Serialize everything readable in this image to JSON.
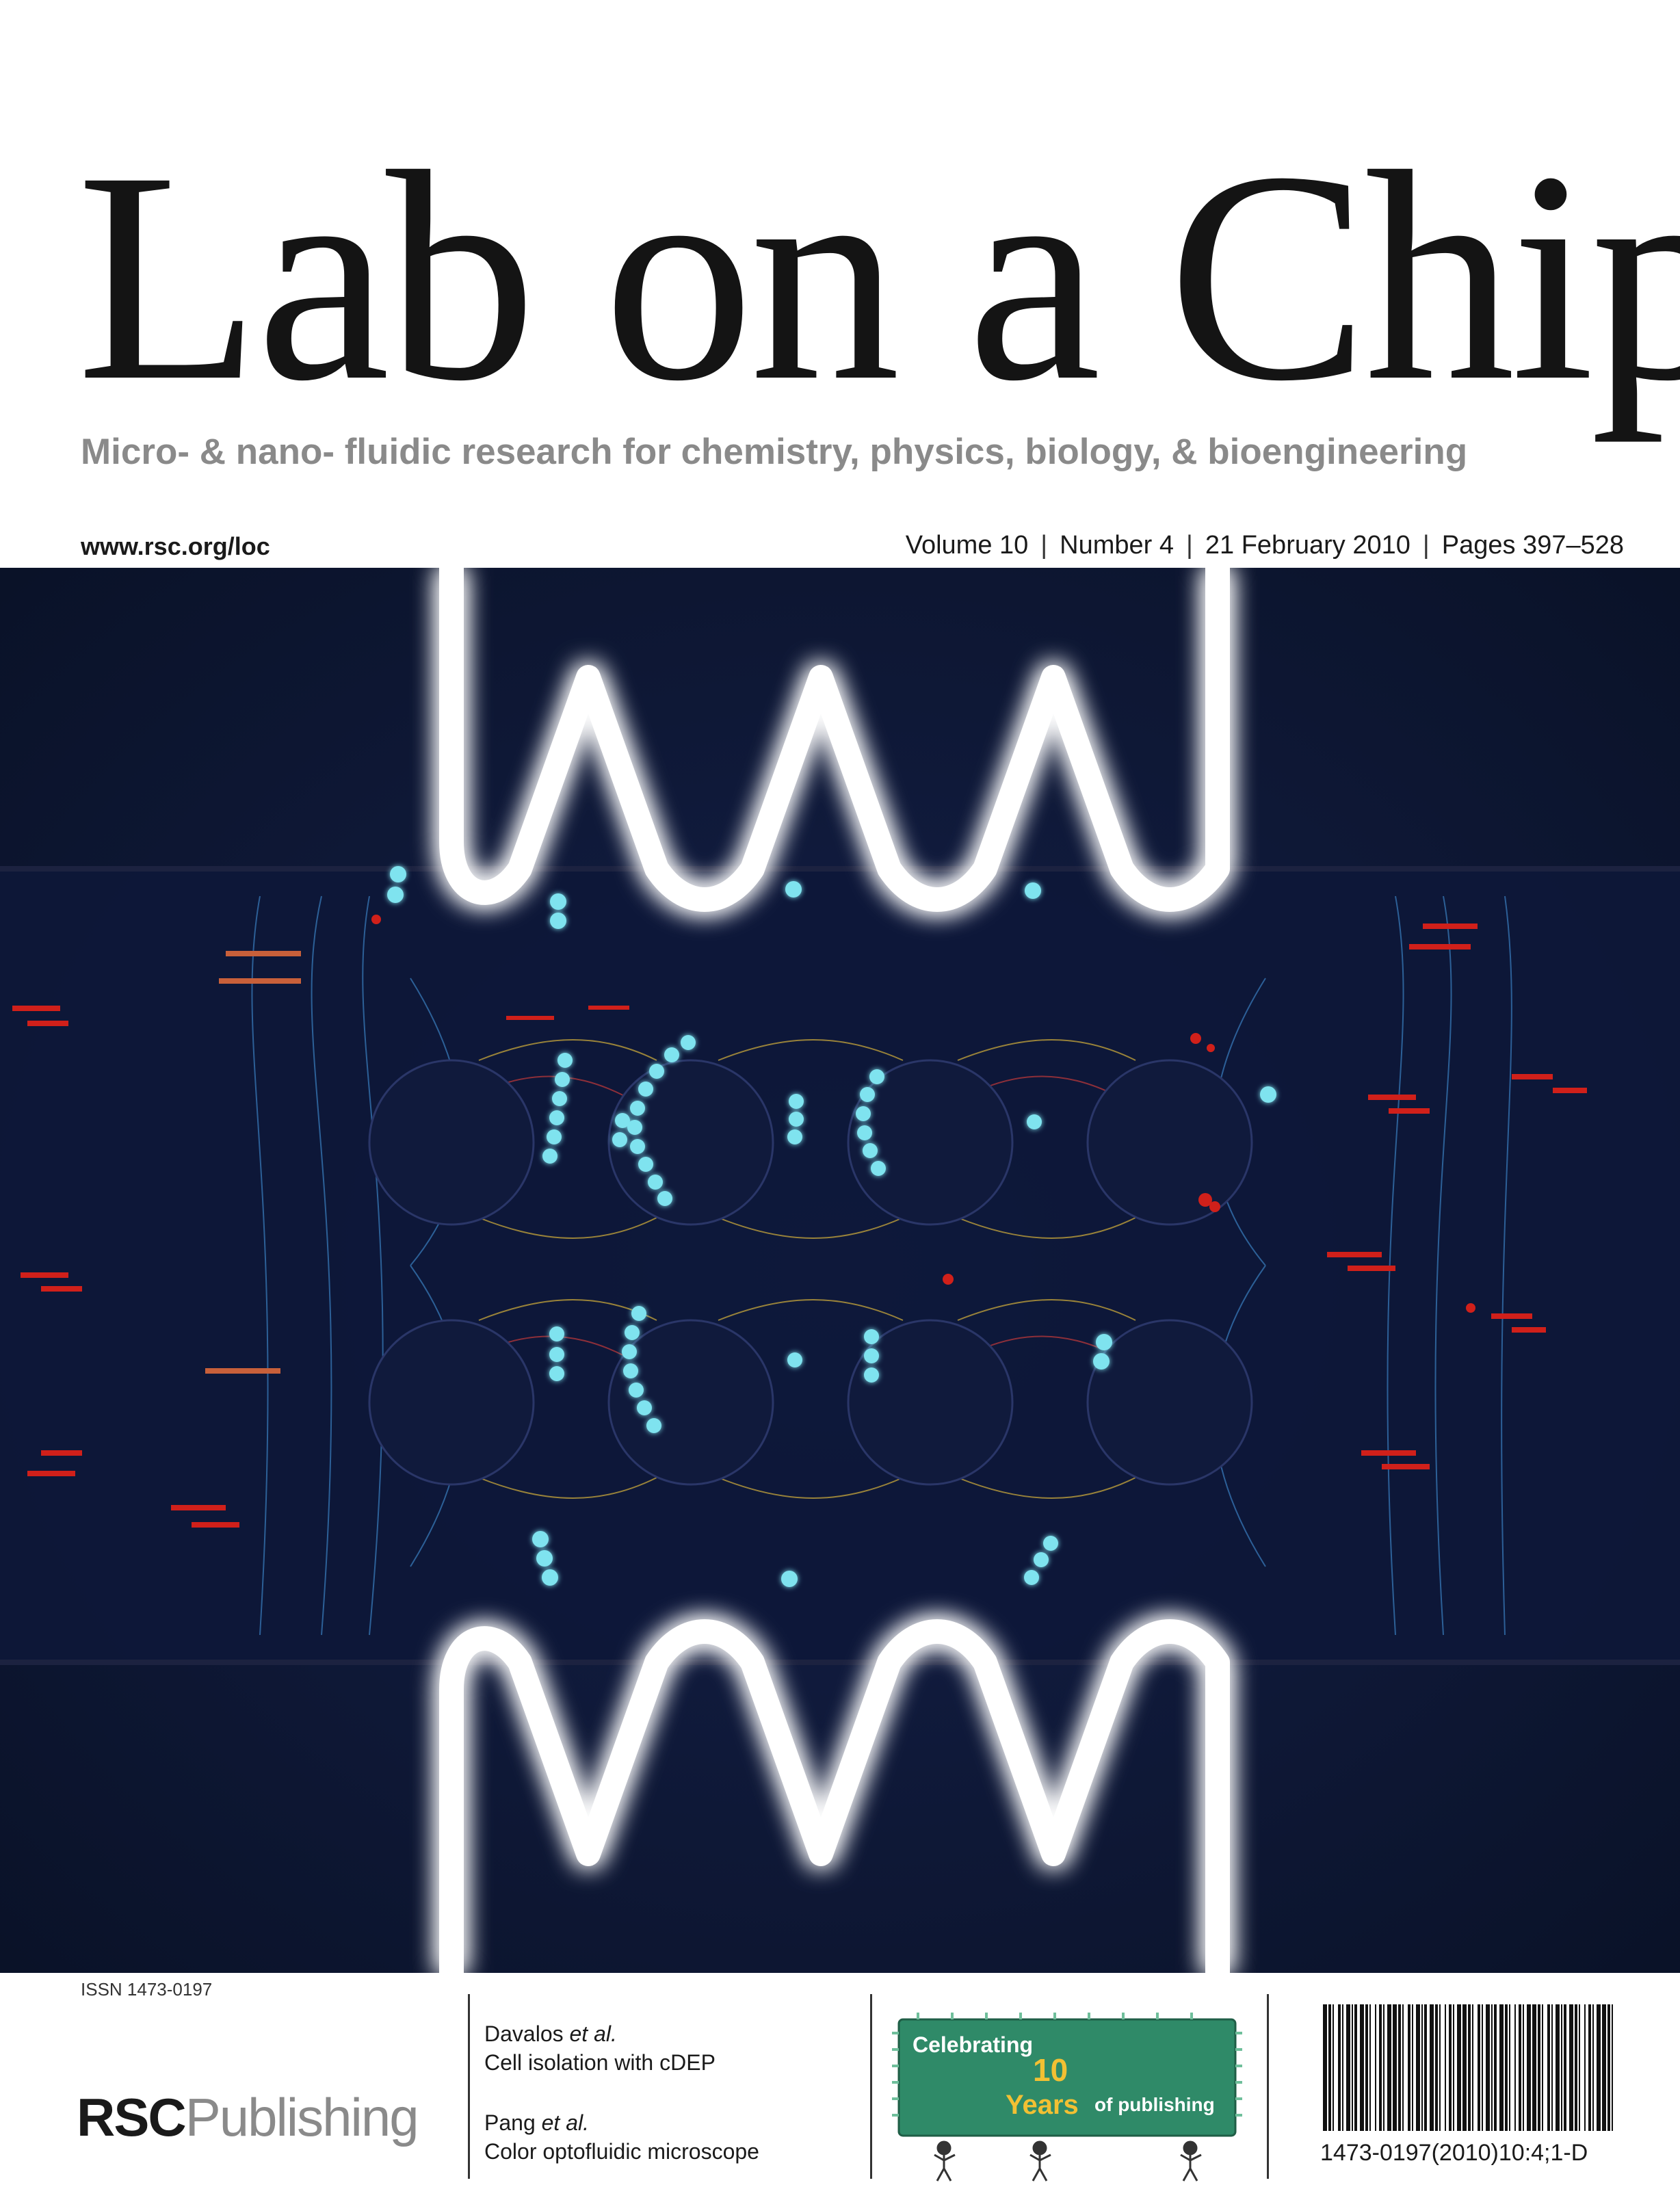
{
  "journal": {
    "title": "Lab on a Chip",
    "subtitle": "Micro- & nano- fluidic research for chemistry, physics, biology, & bioengineering",
    "url": "www.rsc.org/loc",
    "issue": {
      "volume": "Volume 10",
      "number": "Number 4",
      "date": "21 February 2010",
      "pages": "Pages 397–528",
      "separator": "|"
    }
  },
  "footer": {
    "issn": "ISSN 1473-0197",
    "publisher_bold": "RSC",
    "publisher_light": "Publishing",
    "articles": [
      {
        "author": "Davalos",
        "etal": " et al.",
        "title": "Cell isolation with cDEP"
      },
      {
        "author": "Pang",
        "etal": " et al.",
        "title": "Color optofluidic microscope"
      }
    ],
    "anniversary": {
      "line1": "Celebrating",
      "number": "10",
      "line2": "Years",
      "line3": "of publishing"
    },
    "barcode_text": "1473-0197(2010)10:4;1-D"
  },
  "colors": {
    "cover_background": "#0b1430",
    "electrode_glow": "#ffffff",
    "cell_color": "#7fe3ef",
    "subtitle_gray": "#8a8a8a",
    "banner_green": "#2f8a68"
  }
}
